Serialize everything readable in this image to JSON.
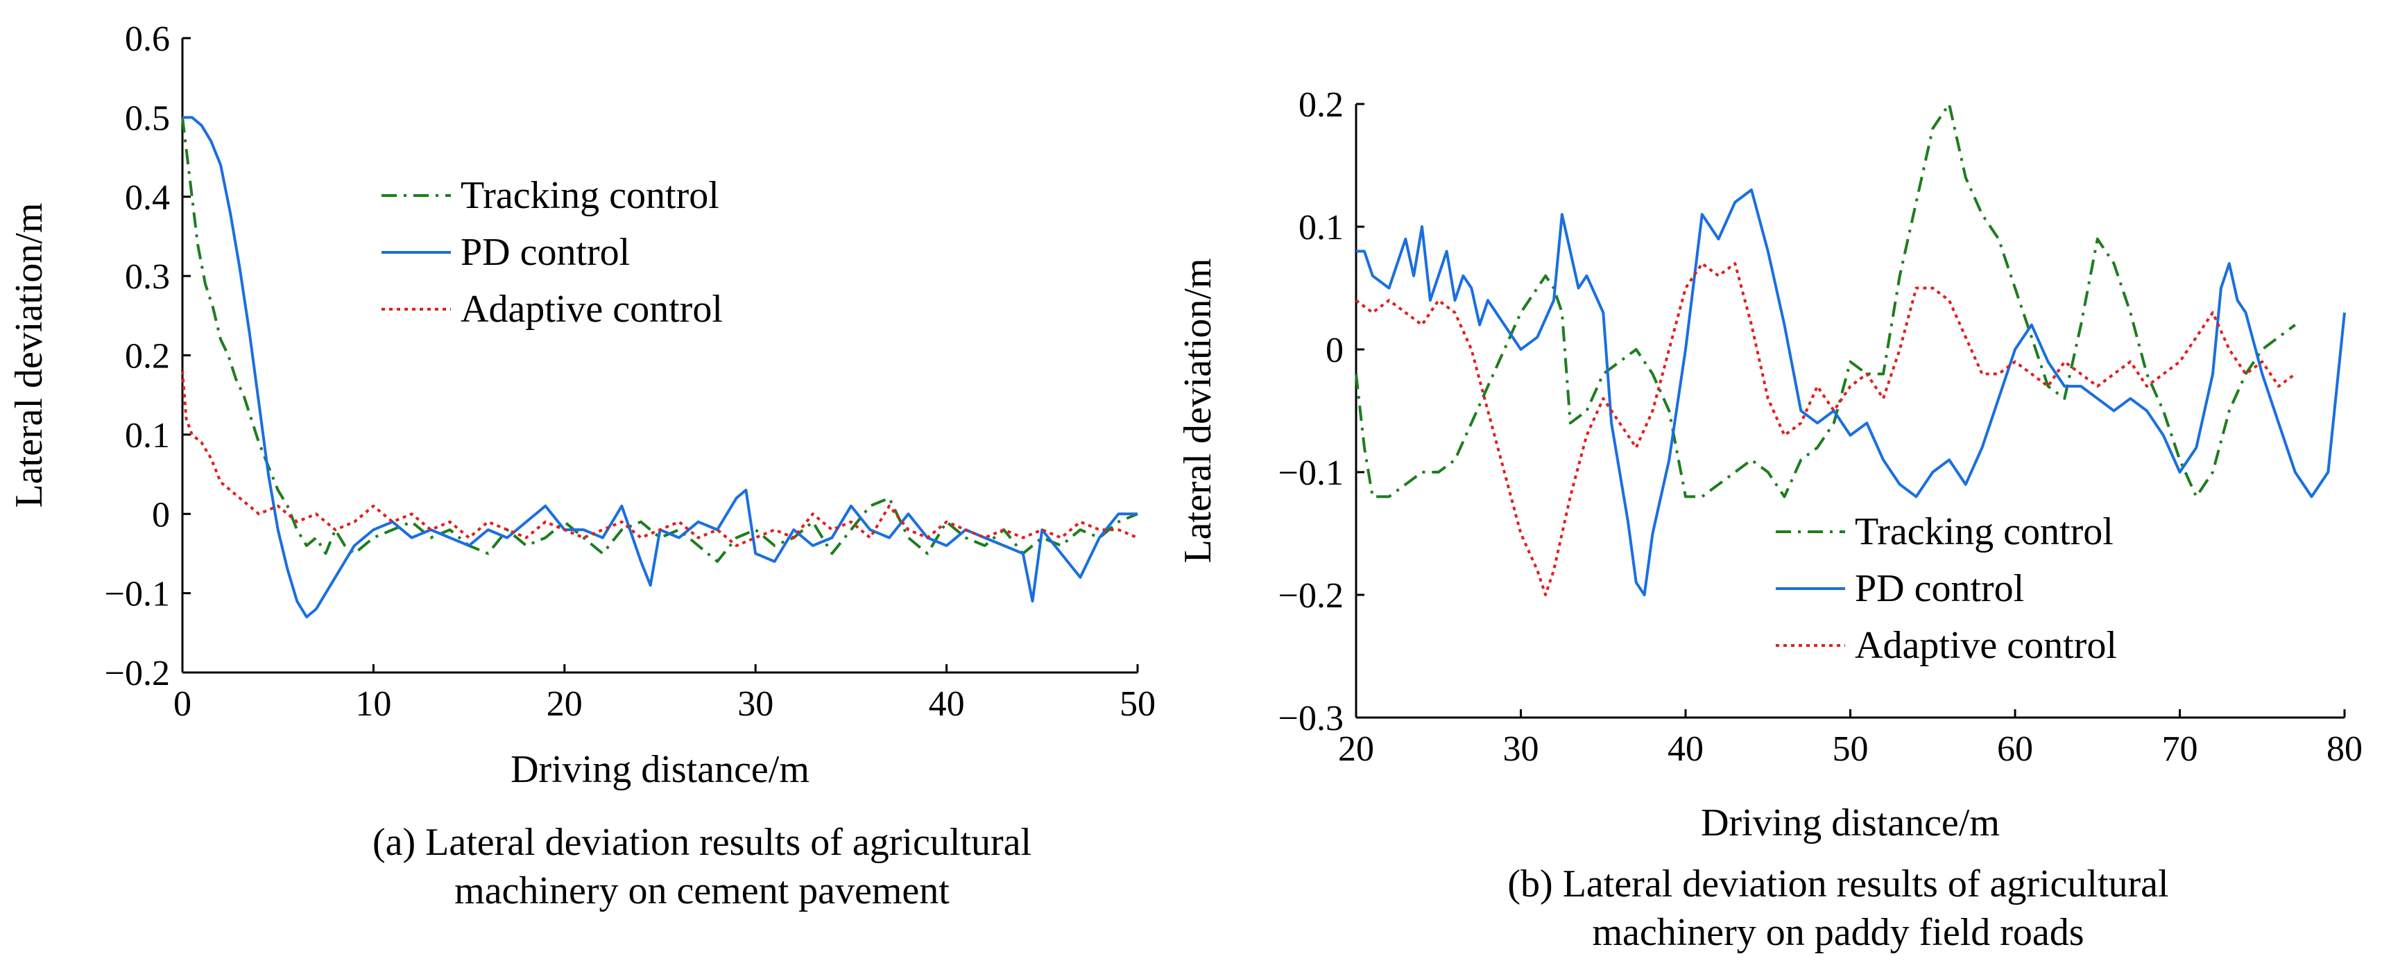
{
  "chart_data": [
    {
      "type": "line",
      "caption": [
        "(a) Lateral deviation results of agricultural",
        "machinery on cement pavement"
      ],
      "xlabel": "Driving distance/m",
      "ylabel": "Lateral deviation/m",
      "xlim": [
        0,
        50
      ],
      "ylim": [
        -0.2,
        0.6
      ],
      "xticks": [
        0,
        10,
        20,
        30,
        40,
        50
      ],
      "xtick_labels": [
        "0",
        "10",
        "20",
        "30",
        "40",
        "50"
      ],
      "yticks": [
        -0.2,
        -0.1,
        0,
        0.1,
        0.2,
        0.3,
        0.4,
        0.5,
        0.6
      ],
      "ytick_labels": [
        "−0.2",
        "−0.1",
        "0",
        "0.1",
        "0.2",
        "0.3",
        "0.4",
        "0.5",
        "0.6"
      ],
      "grid": false,
      "legend_position": "upper-center",
      "series": [
        {
          "name": "Tracking control",
          "color": "#1e7d1e",
          "dash": "dashdot",
          "x": [
            0,
            0.3,
            0.8,
            1.2,
            1.6,
            2.0,
            2.4,
            2.8,
            3.2,
            3.6,
            4.0,
            4.5,
            5.0,
            5.5,
            6,
            6.5,
            7,
            7.5,
            8,
            8.5,
            9,
            10,
            11,
            12,
            13,
            14,
            15,
            16,
            17,
            18,
            19,
            20,
            21,
            22,
            23,
            24,
            25,
            26,
            27,
            28,
            29,
            30,
            31,
            32,
            33,
            34,
            35,
            36,
            37,
            38,
            39,
            40,
            41,
            42,
            43,
            44,
            45,
            46,
            47,
            48,
            49,
            50
          ],
          "y": [
            0.5,
            0.44,
            0.34,
            0.29,
            0.26,
            0.22,
            0.2,
            0.17,
            0.15,
            0.12,
            0.09,
            0.06,
            0.03,
            0.01,
            -0.02,
            -0.04,
            -0.03,
            -0.05,
            -0.02,
            -0.04,
            -0.05,
            -0.03,
            -0.02,
            -0.01,
            -0.03,
            -0.02,
            -0.04,
            -0.05,
            -0.02,
            -0.04,
            -0.03,
            -0.01,
            -0.03,
            -0.05,
            -0.02,
            -0.01,
            -0.03,
            -0.02,
            -0.04,
            -0.06,
            -0.03,
            -0.02,
            -0.04,
            -0.03,
            -0.01,
            -0.05,
            -0.02,
            0.01,
            0.02,
            -0.03,
            -0.05,
            -0.01,
            -0.03,
            -0.04,
            -0.02,
            -0.05,
            -0.03,
            -0.04,
            -0.02,
            -0.03,
            -0.01,
            0.0
          ]
        },
        {
          "name": "PD control",
          "color": "#1a6fe0",
          "dash": "solid",
          "x": [
            0,
            0.5,
            1.0,
            1.5,
            2.0,
            2.5,
            3.0,
            3.5,
            4.0,
            4.5,
            5.0,
            5.5,
            6,
            6.5,
            7,
            7.5,
            8,
            8.5,
            9,
            10,
            11,
            12,
            13,
            14,
            15,
            16,
            17,
            18,
            19,
            20,
            21,
            22,
            23,
            24,
            24.5,
            25,
            26,
            27,
            28,
            29,
            29.5,
            30,
            31,
            32,
            33,
            34,
            35,
            36,
            37,
            38,
            39,
            40,
            41,
            42,
            43,
            44,
            44.5,
            45,
            46,
            47,
            48,
            49,
            50
          ],
          "y": [
            0.5,
            0.5,
            0.49,
            0.47,
            0.44,
            0.38,
            0.31,
            0.23,
            0.14,
            0.05,
            -0.02,
            -0.07,
            -0.11,
            -0.13,
            -0.12,
            -0.1,
            -0.08,
            -0.06,
            -0.04,
            -0.02,
            -0.01,
            -0.03,
            -0.02,
            -0.03,
            -0.04,
            -0.02,
            -0.03,
            -0.01,
            0.01,
            -0.02,
            -0.02,
            -0.03,
            0.01,
            -0.06,
            -0.09,
            -0.02,
            -0.03,
            -0.01,
            -0.02,
            0.02,
            0.03,
            -0.05,
            -0.06,
            -0.02,
            -0.04,
            -0.03,
            0.01,
            -0.02,
            -0.03,
            0.0,
            -0.03,
            -0.04,
            -0.02,
            -0.03,
            -0.04,
            -0.05,
            -0.11,
            -0.02,
            -0.05,
            -0.08,
            -0.03,
            0.0,
            0.0
          ]
        },
        {
          "name": "Adaptive control",
          "color": "#e02020",
          "dash": "dotted",
          "x": [
            0,
            0.2,
            0.5,
            1.0,
            1.5,
            2.0,
            2.5,
            3.0,
            3.5,
            4.0,
            5,
            6,
            7,
            8,
            9,
            10,
            11,
            12,
            13,
            14,
            15,
            16,
            17,
            18,
            19,
            20,
            21,
            22,
            23,
            24,
            25,
            26,
            27,
            28,
            29,
            30,
            31,
            32,
            33,
            34,
            35,
            36,
            37,
            38,
            39,
            40,
            41,
            42,
            43,
            44,
            45,
            46,
            47,
            48,
            49,
            50
          ],
          "y": [
            0.18,
            0.12,
            0.1,
            0.09,
            0.07,
            0.04,
            0.03,
            0.02,
            0.01,
            0.0,
            0.01,
            -0.01,
            0.0,
            -0.02,
            -0.01,
            0.01,
            -0.01,
            0.0,
            -0.02,
            -0.01,
            -0.03,
            -0.01,
            -0.02,
            -0.03,
            -0.01,
            -0.02,
            -0.03,
            -0.02,
            -0.01,
            -0.03,
            -0.02,
            -0.01,
            -0.03,
            -0.02,
            -0.04,
            -0.03,
            -0.02,
            -0.03,
            0.0,
            -0.02,
            -0.01,
            -0.03,
            0.01,
            -0.02,
            -0.03,
            -0.01,
            -0.02,
            -0.03,
            -0.02,
            -0.03,
            -0.02,
            -0.03,
            -0.01,
            -0.02,
            -0.02,
            -0.03
          ]
        }
      ]
    },
    {
      "type": "line",
      "caption": [
        "(b) Lateral deviation results of agricultural",
        "machinery on paddy field roads"
      ],
      "xlabel": "Driving distance/m",
      "ylabel": "Lateral deviation/m",
      "xlim": [
        20,
        80
      ],
      "ylim": [
        -0.3,
        0.2
      ],
      "xticks": [
        20,
        30,
        40,
        50,
        60,
        70,
        80
      ],
      "xtick_labels": [
        "20",
        "30",
        "40",
        "50",
        "60",
        "70",
        "80"
      ],
      "yticks": [
        -0.3,
        -0.2,
        -0.1,
        0,
        0.1,
        0.2
      ],
      "ytick_labels": [
        "−0.3",
        "−0.2",
        "−0.1",
        "0",
        "0.1",
        "0.2"
      ],
      "grid": false,
      "legend_position": "lower-center",
      "series": [
        {
          "name": "Tracking control",
          "color": "#1e7d1e",
          "dash": "dashdot",
          "x": [
            20,
            20.5,
            21,
            22,
            23,
            24,
            25,
            26,
            27,
            28,
            29,
            30,
            31,
            31.5,
            32,
            32.5,
            33,
            34,
            35,
            36,
            37,
            38,
            39,
            40,
            41,
            42,
            43,
            44,
            45,
            46,
            47,
            48,
            49,
            50,
            51,
            52,
            53,
            54,
            55,
            56,
            57,
            58,
            59,
            60,
            61,
            62,
            63,
            64,
            65,
            66,
            67,
            68,
            69,
            70,
            71,
            72,
            73,
            74,
            75,
            76,
            77
          ],
          "y": [
            -0.02,
            -0.08,
            -0.12,
            -0.12,
            -0.11,
            -0.1,
            -0.1,
            -0.09,
            -0.06,
            -0.03,
            0.0,
            0.03,
            0.05,
            0.06,
            0.05,
            0.03,
            -0.06,
            -0.05,
            -0.02,
            -0.01,
            0.0,
            -0.02,
            -0.05,
            -0.12,
            -0.12,
            -0.11,
            -0.1,
            -0.09,
            -0.1,
            -0.12,
            -0.09,
            -0.08,
            -0.06,
            -0.01,
            -0.02,
            -0.02,
            0.06,
            0.12,
            0.18,
            0.2,
            0.14,
            0.11,
            0.09,
            0.05,
            0.01,
            -0.03,
            -0.04,
            0.02,
            0.09,
            0.07,
            0.03,
            -0.02,
            -0.05,
            -0.09,
            -0.12,
            -0.1,
            -0.05,
            -0.02,
            0.0,
            0.01,
            0.02
          ]
        },
        {
          "name": "PD control",
          "color": "#1a6fe0",
          "dash": "solid",
          "x": [
            20,
            20.5,
            21,
            22,
            23,
            23.5,
            24,
            24.5,
            25,
            25.5,
            26,
            26.5,
            27,
            27.5,
            28,
            29,
            30,
            31,
            32,
            32.5,
            33,
            33.5,
            34,
            35,
            35.5,
            36,
            36.5,
            37,
            37.5,
            38,
            39,
            40,
            41,
            42,
            43,
            44,
            45,
            46,
            47,
            48,
            49,
            50,
            51,
            52,
            53,
            54,
            55,
            56,
            57,
            58,
            59,
            60,
            61,
            62,
            63,
            64,
            65,
            66,
            67,
            68,
            69,
            70,
            71,
            72,
            72.5,
            73,
            73.5,
            74,
            75,
            76,
            77,
            78,
            79,
            80
          ],
          "y": [
            0.08,
            0.08,
            0.06,
            0.05,
            0.09,
            0.06,
            0.1,
            0.04,
            0.06,
            0.08,
            0.04,
            0.06,
            0.05,
            0.02,
            0.04,
            0.02,
            0.0,
            0.01,
            0.04,
            0.11,
            0.08,
            0.05,
            0.06,
            0.03,
            -0.06,
            -0.1,
            -0.14,
            -0.19,
            -0.2,
            -0.15,
            -0.09,
            0.0,
            0.11,
            0.09,
            0.12,
            0.13,
            0.08,
            0.02,
            -0.05,
            -0.06,
            -0.05,
            -0.07,
            -0.06,
            -0.09,
            -0.11,
            -0.12,
            -0.1,
            -0.09,
            -0.11,
            -0.08,
            -0.04,
            0.0,
            0.02,
            -0.01,
            -0.03,
            -0.03,
            -0.04,
            -0.05,
            -0.04,
            -0.05,
            -0.07,
            -0.1,
            -0.08,
            -0.02,
            0.05,
            0.07,
            0.04,
            0.03,
            -0.02,
            -0.06,
            -0.1,
            -0.12,
            -0.1,
            0.03
          ]
        },
        {
          "name": "Adaptive control",
          "color": "#e02020",
          "dash": "dotted",
          "x": [
            20,
            21,
            22,
            23,
            24,
            25,
            26,
            27,
            28,
            29,
            30,
            31,
            31.5,
            32,
            33,
            34,
            35,
            36,
            37,
            38,
            39,
            40,
            41,
            42,
            43,
            44,
            45,
            46,
            47,
            48,
            49,
            50,
            51,
            52,
            53,
            54,
            55,
            56,
            57,
            58,
            59,
            60,
            61,
            62,
            63,
            64,
            65,
            66,
            67,
            68,
            69,
            70,
            71,
            72,
            73,
            74,
            75,
            76,
            77
          ],
          "y": [
            0.04,
            0.03,
            0.04,
            0.03,
            0.02,
            0.04,
            0.03,
            0.0,
            -0.05,
            -0.1,
            -0.15,
            -0.18,
            -0.2,
            -0.18,
            -0.12,
            -0.07,
            -0.04,
            -0.06,
            -0.08,
            -0.05,
            0.0,
            0.05,
            0.07,
            0.06,
            0.07,
            0.02,
            -0.04,
            -0.07,
            -0.06,
            -0.03,
            -0.05,
            -0.03,
            -0.02,
            -0.04,
            0.0,
            0.05,
            0.05,
            0.04,
            0.01,
            -0.02,
            -0.02,
            -0.01,
            -0.02,
            -0.03,
            -0.01,
            -0.02,
            -0.03,
            -0.02,
            -0.01,
            -0.03,
            -0.02,
            -0.01,
            0.01,
            0.03,
            0.0,
            -0.02,
            -0.01,
            -0.03,
            -0.02
          ]
        }
      ]
    }
  ]
}
